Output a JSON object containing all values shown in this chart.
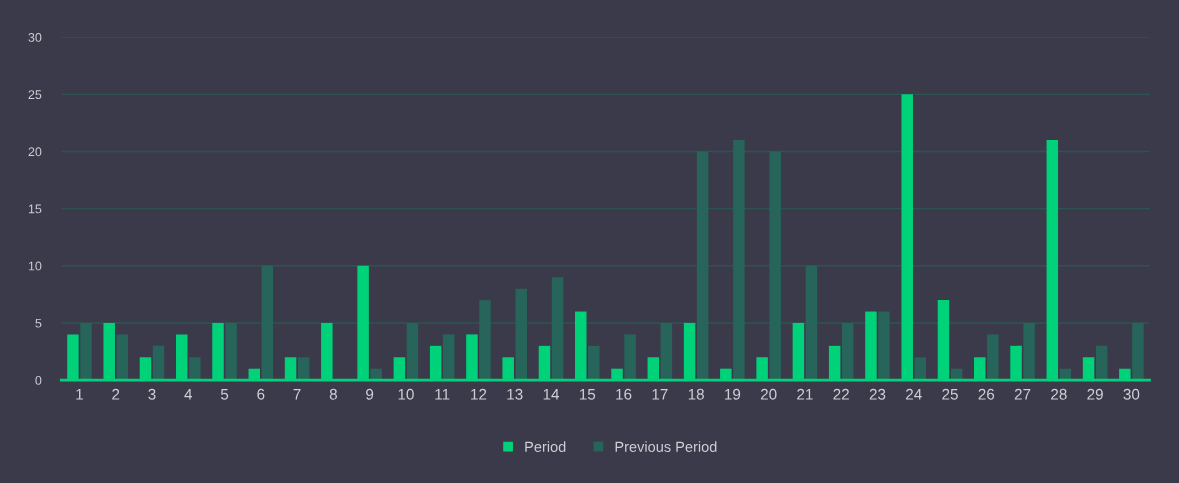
{
  "chart_data": {
    "type": "bar",
    "categories": [
      "1",
      "2",
      "3",
      "4",
      "5",
      "6",
      "7",
      "8",
      "9",
      "10",
      "11",
      "12",
      "13",
      "14",
      "15",
      "16",
      "17",
      "18",
      "19",
      "20",
      "21",
      "22",
      "23",
      "24",
      "25",
      "26",
      "27",
      "28",
      "29",
      "30"
    ],
    "series": [
      {
        "name": "Period",
        "color": "#00d27a",
        "values": [
          4,
          5,
          2,
          4,
          5,
          1,
          2,
          5,
          10,
          2,
          3,
          4,
          2,
          3,
          6,
          1,
          2,
          5,
          1,
          2,
          5,
          3,
          6,
          25,
          7,
          2,
          3,
          21,
          2,
          1
        ]
      },
      {
        "name": "Previous Period",
        "color": "#27645a",
        "values": [
          5,
          4,
          3,
          2,
          5,
          10,
          2,
          0,
          1,
          5,
          4,
          7,
          8,
          9,
          3,
          4,
          5,
          20,
          21,
          20,
          10,
          5,
          6,
          2,
          1,
          4,
          5,
          1,
          3,
          5
        ]
      }
    ],
    "ylim": [
      0,
      30
    ],
    "yticks": [
      0,
      5,
      10,
      15,
      20,
      25,
      30
    ],
    "grid": "y",
    "legend": "bottom"
  }
}
